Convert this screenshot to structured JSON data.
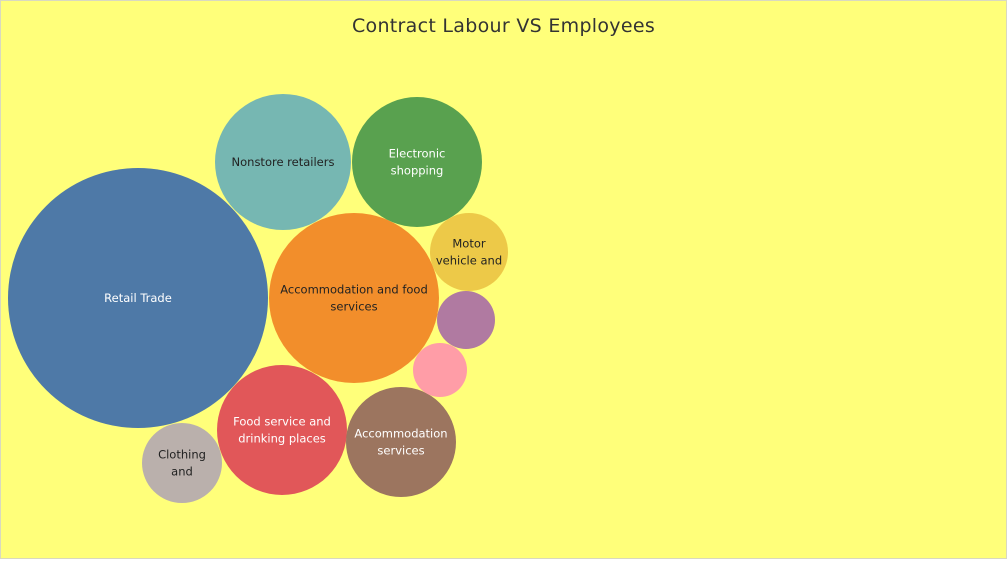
{
  "chart_data": {
    "type": "bubble",
    "title": "Contract Labour  VS  Employees",
    "colors": {
      "background": "#ffff7a",
      "retail_trade": "#4e79a7",
      "accommodation_food": "#f28e2b",
      "nonstore": "#76b7b2",
      "electronic": "#59a14f",
      "motor_vehicle": "#edc948",
      "food_service": "#e15759",
      "accommodation_services": "#9c755f",
      "clothing": "#bab0ac",
      "purple": "#b07aa1",
      "pink": "#ff9da7"
    },
    "bubbles": [
      {
        "label": "Retail Trade",
        "lines": [
          "Retail Trade"
        ],
        "relative_size": 1.0,
        "color": "#4e79a7",
        "text_color": "#ffffff"
      },
      {
        "label": "Accommodation and food services",
        "lines": [
          "Accommodation and food",
          "services"
        ],
        "relative_size": 0.42,
        "color": "#f28e2b",
        "text_color": "#222222"
      },
      {
        "label": "Nonstore retailers",
        "lines": [
          "Nonstore retailers"
        ],
        "relative_size": 0.27,
        "color": "#76b7b2",
        "text_color": "#222222"
      },
      {
        "label": "Electronic shopping",
        "lines": [
          "Electronic",
          "shopping"
        ],
        "relative_size": 0.25,
        "color": "#59a14f",
        "text_color": "#ffffff"
      },
      {
        "label": "Food service and drinking places",
        "lines": [
          "Food service and",
          "drinking places"
        ],
        "relative_size": 0.25,
        "color": "#e15759",
        "text_color": "#ffffff"
      },
      {
        "label": "Accommodation services",
        "lines": [
          "Accommodation",
          "services"
        ],
        "relative_size": 0.18,
        "color": "#9c755f",
        "text_color": "#ffffff"
      },
      {
        "label": "Motor vehicle and",
        "lines": [
          "Motor",
          "vehicle and"
        ],
        "relative_size": 0.09,
        "color": "#edc948",
        "text_color": "#222222"
      },
      {
        "label": "Clothing and",
        "lines": [
          "Clothing",
          "and"
        ],
        "relative_size": 0.1,
        "color": "#bab0ac",
        "text_color": "#222222"
      },
      {
        "label": "",
        "lines": [],
        "relative_size": 0.05,
        "color": "#b07aa1",
        "text_color": "#ffffff"
      },
      {
        "label": "",
        "lines": [],
        "relative_size": 0.04,
        "color": "#ff9da7",
        "text_color": "#ffffff"
      }
    ]
  }
}
